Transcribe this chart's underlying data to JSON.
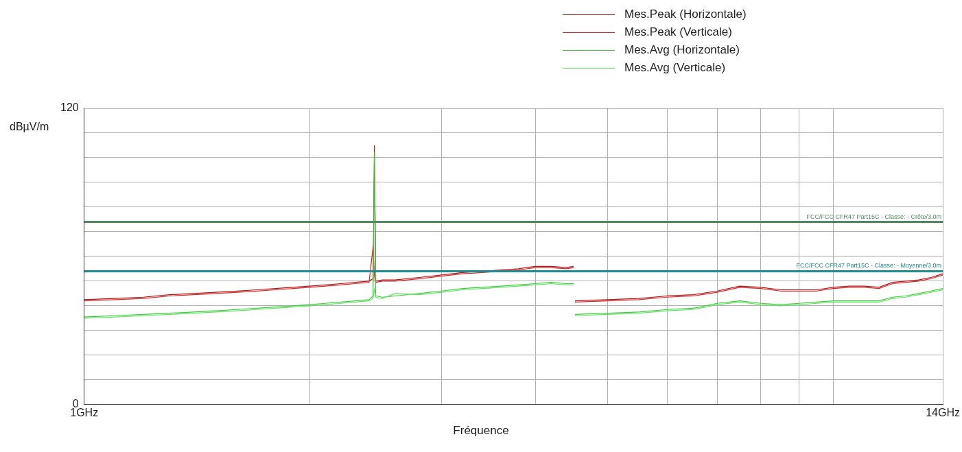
{
  "chart_data": {
    "type": "line",
    "xlabel": "Fréquence",
    "ylabel": "dBµV/m",
    "log": "x",
    "grid": true,
    "legend": "top right",
    "marker": "none",
    "line_style": "solid",
    "xlim": [
      1,
      14
    ],
    "xticks": [
      {
        "value": 1,
        "label": "1GHz"
      },
      {
        "value": 2,
        "label": null
      },
      {
        "value": 3,
        "label": null
      },
      {
        "value": 4,
        "label": null
      },
      {
        "value": 5,
        "label": null
      },
      {
        "value": 6,
        "label": null
      },
      {
        "value": 7,
        "label": null
      },
      {
        "value": 8,
        "label": null
      },
      {
        "value": 9,
        "label": null
      },
      {
        "value": 10,
        "label": null
      },
      {
        "value": 14,
        "label": "14GHz"
      }
    ],
    "ylim": [
      0,
      120
    ],
    "yticks": [
      0,
      {
        "value": 10,
        "label": null
      },
      {
        "value": 20,
        "label": null
      },
      {
        "value": 30,
        "label": null
      },
      {
        "value": 40,
        "label": null
      },
      {
        "value": 50,
        "label": null
      },
      {
        "value": 60,
        "label": null
      },
      {
        "value": 70,
        "label": null
      },
      {
        "value": 80,
        "label": null
      },
      {
        "value": 90,
        "label": null
      },
      {
        "value": 100,
        "label": null
      },
      {
        "value": 110,
        "label": null
      },
      120
    ],
    "x": [
      1,
      1.1,
      1.2,
      1.3,
      1.4,
      1.5,
      1.6,
      1.7,
      1.8,
      1.9,
      2.0,
      2.1,
      2.2,
      2.3,
      2.4,
      2.43,
      2.44,
      2.45,
      2.5,
      2.6,
      2.8,
      3.0,
      3.2,
      3.4,
      3.6,
      3.8,
      4.0,
      4.2,
      4.4,
      4.5,
      4.51,
      4.52,
      5,
      5.5,
      6,
      6.5,
      7,
      7.5,
      8,
      8.5,
      9,
      9.5,
      10,
      10.5,
      11,
      11.5,
      12,
      12.5,
      13,
      13.5,
      14
    ],
    "series": [
      {
        "name": "Mes.Peak (Horizontale)",
        "color": "#b01818",
        "values": [
          42.5,
          43,
          43.5,
          44.5,
          45,
          45.5,
          46,
          46.5,
          47,
          47.5,
          48,
          48.5,
          49,
          49.5,
          50,
          51,
          105,
          50,
          50.5,
          50.5,
          51.5,
          52.5,
          53.5,
          54,
          54.5,
          55,
          56,
          56,
          55.5,
          56,
          null,
          42,
          42.5,
          43,
          44,
          44.5,
          46,
          48,
          47.5,
          46.5,
          46.5,
          46.5,
          47.5,
          48,
          48,
          47.5,
          49.5,
          50,
          50.5,
          51.5,
          53
        ]
      },
      {
        "name": "Mes.Peak (Verticale)",
        "color": "#d42a2a",
        "values": [
          42,
          42.5,
          43,
          44,
          44.5,
          45,
          45.5,
          46,
          46.5,
          47,
          47.5,
          48,
          48.5,
          49,
          49.5,
          64,
          52,
          49.5,
          50,
          50,
          51,
          52,
          53,
          53.5,
          54,
          54.5,
          55.5,
          55.5,
          55,
          55.5,
          null,
          41.5,
          42,
          42.5,
          43.5,
          44,
          45.5,
          47.5,
          47,
          46,
          46,
          46,
          47,
          47.5,
          47.5,
          47,
          49,
          49.5,
          50,
          51,
          52.5
        ]
      },
      {
        "name": "Mes.Avg (Horizontale)",
        "color": "#3ccc3c",
        "values": [
          35.5,
          36,
          36.5,
          37,
          37.5,
          38,
          38.5,
          39,
          39.5,
          40,
          40.5,
          41,
          41.5,
          42,
          42.5,
          44,
          102,
          44,
          43.5,
          44,
          45,
          46,
          47,
          47.5,
          48,
          48.5,
          49,
          49.5,
          49,
          49,
          null,
          36.5,
          37,
          37.5,
          38.5,
          39,
          41,
          42,
          41,
          40.5,
          41,
          41.5,
          42,
          42,
          42,
          42,
          43.5,
          44,
          45,
          46,
          47
        ]
      },
      {
        "name": "Mes.Avg (Verticale)",
        "color": "#66e066",
        "values": [
          35,
          35.5,
          36,
          36.5,
          37,
          37.5,
          38,
          38.5,
          39,
          39.5,
          40,
          40.5,
          41,
          41.5,
          42,
          43,
          47,
          43.5,
          43,
          45,
          44.5,
          45.5,
          46.5,
          47,
          47.5,
          48,
          48.5,
          49,
          48.5,
          48.5,
          null,
          36,
          36.5,
          37,
          38,
          38.5,
          40.5,
          41.5,
          40.5,
          40,
          40.5,
          41,
          41.5,
          41.5,
          41.5,
          41.5,
          43,
          43.5,
          44.5,
          45.5,
          46.5
        ]
      }
    ],
    "ref_lines": [
      {
        "axis": "y",
        "value": 74,
        "label": "FCC/FCC CFR47 Part15C - Classe: - Crête/3.0m",
        "color": "#4f8a5a"
      },
      {
        "axis": "y",
        "value": 54,
        "label": "FCC/FCC CFR47 Part15C - Classe: - Moyenne/3.0m",
        "color": "#1f8a8f"
      }
    ]
  }
}
